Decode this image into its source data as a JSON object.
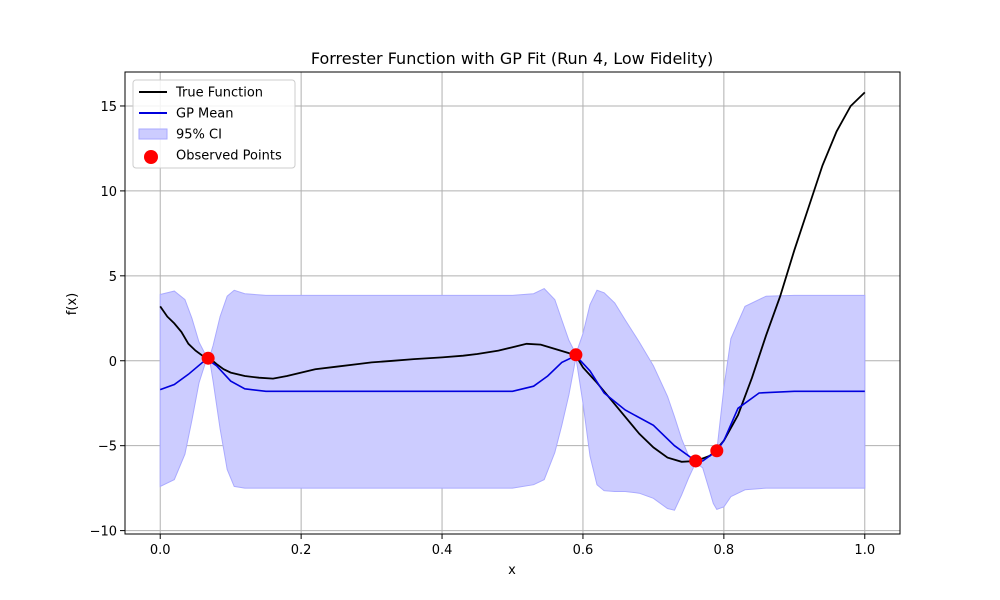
{
  "chart_data": {
    "type": "line",
    "title": "Forrester Function with GP Fit (Run 4, Low Fidelity)",
    "xlabel": "x",
    "ylabel": "f(x)",
    "xlim": [
      -0.05,
      1.05
    ],
    "ylim": [
      -10.2,
      17.0
    ],
    "xticks": [
      0.0,
      0.2,
      0.4,
      0.6,
      0.8,
      1.0
    ],
    "xtick_labels": [
      "0.0",
      "0.2",
      "0.4",
      "0.6",
      "0.8",
      "1.0"
    ],
    "yticks": [
      -10,
      -5,
      0,
      5,
      10,
      15
    ],
    "ytick_labels": [
      "−10",
      "−5",
      "0",
      "5",
      "10",
      "15"
    ],
    "grid": true,
    "legend_position": "top-left",
    "colors": {
      "true_function": "#000000",
      "gp_mean": "#0000dd",
      "ci_fill": "#ccccff",
      "ci_edge": "#aaaaff",
      "observed": "#ff0000",
      "grid": "#b0b0b0"
    },
    "series": [
      {
        "name": "True Function",
        "x": [
          0.0,
          0.01,
          0.02,
          0.03,
          0.04,
          0.05,
          0.06,
          0.07,
          0.08,
          0.09,
          0.1,
          0.12,
          0.14,
          0.16,
          0.18,
          0.2,
          0.22,
          0.25,
          0.28,
          0.3,
          0.33,
          0.36,
          0.4,
          0.43,
          0.45,
          0.48,
          0.5,
          0.52,
          0.54,
          0.56,
          0.58,
          0.59,
          0.6,
          0.62,
          0.64,
          0.66,
          0.68,
          0.7,
          0.72,
          0.74,
          0.76,
          0.78,
          0.79,
          0.8,
          0.82,
          0.84,
          0.86,
          0.88,
          0.9,
          0.92,
          0.94,
          0.96,
          0.98,
          1.0
        ],
        "y": [
          3.2,
          2.6,
          2.2,
          1.7,
          1.0,
          0.6,
          0.3,
          0.15,
          -0.2,
          -0.5,
          -0.7,
          -0.9,
          -1.0,
          -1.05,
          -0.9,
          -0.7,
          -0.5,
          -0.35,
          -0.2,
          -0.1,
          0.0,
          0.1,
          0.2,
          0.3,
          0.4,
          0.6,
          0.8,
          1.0,
          0.95,
          0.7,
          0.45,
          0.3,
          -0.4,
          -1.3,
          -2.3,
          -3.3,
          -4.3,
          -5.1,
          -5.7,
          -5.95,
          -5.9,
          -5.6,
          -5.2,
          -4.7,
          -3.2,
          -1.0,
          1.5,
          3.8,
          6.5,
          9.0,
          11.5,
          13.5,
          15.0,
          15.8
        ]
      },
      {
        "name": "GP Mean",
        "x": [
          0.0,
          0.02,
          0.04,
          0.06,
          0.068,
          0.08,
          0.1,
          0.12,
          0.15,
          0.2,
          0.3,
          0.4,
          0.5,
          0.53,
          0.55,
          0.57,
          0.59,
          0.61,
          0.63,
          0.66,
          0.7,
          0.73,
          0.76,
          0.77,
          0.79,
          0.8,
          0.82,
          0.85,
          0.9,
          1.0
        ],
        "y": [
          -1.7,
          -1.4,
          -0.8,
          -0.1,
          0.05,
          -0.3,
          -1.2,
          -1.65,
          -1.8,
          -1.8,
          -1.8,
          -1.8,
          -1.8,
          -1.5,
          -0.9,
          -0.1,
          0.3,
          -0.6,
          -1.9,
          -2.9,
          -3.8,
          -5.0,
          -5.9,
          -5.9,
          -5.3,
          -4.7,
          -2.8,
          -1.9,
          -1.8,
          -1.8
        ]
      }
    ],
    "confidence_band": {
      "name": "95% CI",
      "x": [
        0.0,
        0.02,
        0.035,
        0.045,
        0.055,
        0.065,
        0.07,
        0.075,
        0.085,
        0.095,
        0.105,
        0.12,
        0.15,
        0.2,
        0.3,
        0.4,
        0.5,
        0.53,
        0.545,
        0.56,
        0.57,
        0.58,
        0.59,
        0.6,
        0.61,
        0.62,
        0.63,
        0.645,
        0.66,
        0.68,
        0.7,
        0.72,
        0.73,
        0.74,
        0.75,
        0.76,
        0.77,
        0.78,
        0.785,
        0.79,
        0.8,
        0.81,
        0.83,
        0.86,
        0.9,
        1.0
      ],
      "upper": [
        3.9,
        4.1,
        3.6,
        2.5,
        1.1,
        0.3,
        0.2,
        0.9,
        2.6,
        3.8,
        4.15,
        3.95,
        3.85,
        3.85,
        3.85,
        3.85,
        3.85,
        3.95,
        4.25,
        3.6,
        2.4,
        1.2,
        0.4,
        1.6,
        3.3,
        4.15,
        4.0,
        3.4,
        2.4,
        1.1,
        -0.3,
        -2.1,
        -3.3,
        -4.6,
        -5.6,
        -5.9,
        -5.8,
        -5.55,
        -5.45,
        -5.3,
        -1.6,
        1.3,
        3.2,
        3.8,
        3.85,
        3.85
      ],
      "lower": [
        -7.4,
        -7.0,
        -5.5,
        -3.5,
        -1.3,
        0.0,
        0.1,
        -1.2,
        -4.0,
        -6.4,
        -7.4,
        -7.5,
        -7.5,
        -7.5,
        -7.5,
        -7.5,
        -7.5,
        -7.3,
        -7.0,
        -5.4,
        -3.8,
        -2.0,
        0.2,
        -2.5,
        -5.6,
        -7.3,
        -7.65,
        -7.7,
        -7.7,
        -7.8,
        -8.1,
        -8.7,
        -8.8,
        -7.9,
        -6.9,
        -6.0,
        -6.3,
        -7.7,
        -8.4,
        -8.75,
        -8.6,
        -8.0,
        -7.6,
        -7.5,
        -7.5,
        -7.5
      ]
    },
    "observed_points": {
      "name": "Observed Points",
      "x": [
        0.068,
        0.59,
        0.76,
        0.79
      ],
      "y": [
        0.15,
        0.35,
        -5.9,
        -5.3
      ]
    },
    "legend": [
      "True Function",
      "GP Mean",
      "95% CI",
      "Observed Points"
    ]
  }
}
